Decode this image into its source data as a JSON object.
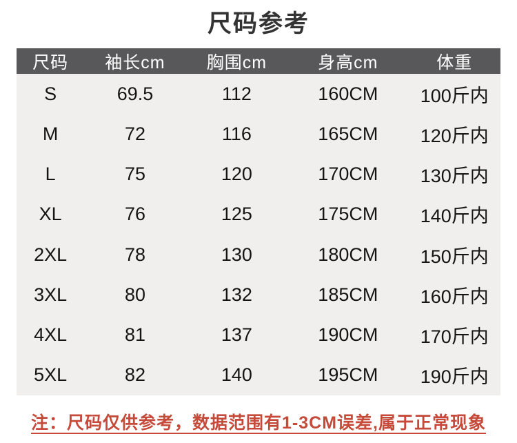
{
  "page": {
    "title": "尺码参考"
  },
  "colors": {
    "title_color": "#333333",
    "header_bg": "#58585a",
    "header_text": "#ffffff",
    "body_bg": "#f0efed",
    "body_text": "#141414",
    "note_red": "#c64a3a"
  },
  "table": {
    "columns": [
      "尺码",
      "袖长cm",
      "胸围cm",
      "身高cm",
      "体重"
    ],
    "rows": [
      [
        "S",
        "69.5",
        "112",
        "160CM",
        "100斤内"
      ],
      [
        "M",
        "72",
        "116",
        "165CM",
        "120斤内"
      ],
      [
        "L",
        "75",
        "120",
        "170CM",
        "130斤内"
      ],
      [
        "XL",
        "76",
        "125",
        "175CM",
        "140斤内"
      ],
      [
        "2XL",
        "78",
        "130",
        "180CM",
        "150斤内"
      ],
      [
        "3XL",
        "80",
        "132",
        "185CM",
        "160斤内"
      ],
      [
        "4XL",
        "81",
        "137",
        "190CM",
        "170斤内"
      ],
      [
        "5XL",
        "82",
        "140",
        "195CM",
        "190斤内"
      ]
    ]
  },
  "note": {
    "text": "注：尺码仅供参考，数据范围有1-3CM误差,属于正常现象"
  },
  "chart_data": {
    "type": "table",
    "title": "尺码参考",
    "columns": [
      "尺码",
      "袖长cm",
      "胸围cm",
      "身高cm",
      "体重"
    ],
    "rows": [
      [
        "S",
        69.5,
        112,
        "160CM",
        "100斤内"
      ],
      [
        "M",
        72,
        116,
        "165CM",
        "120斤内"
      ],
      [
        "L",
        75,
        120,
        "170CM",
        "130斤内"
      ],
      [
        "XL",
        76,
        125,
        "175CM",
        "140斤内"
      ],
      [
        "2XL",
        78,
        130,
        "180CM",
        "150斤内"
      ],
      [
        "3XL",
        80,
        132,
        "185CM",
        "160斤内"
      ],
      [
        "4XL",
        81,
        137,
        "190CM",
        "170斤内"
      ],
      [
        "5XL",
        82,
        140,
        "195CM",
        "190斤内"
      ]
    ],
    "footnote": "注：尺码仅供参考，数据范围有1-3CM误差,属于正常现象"
  }
}
